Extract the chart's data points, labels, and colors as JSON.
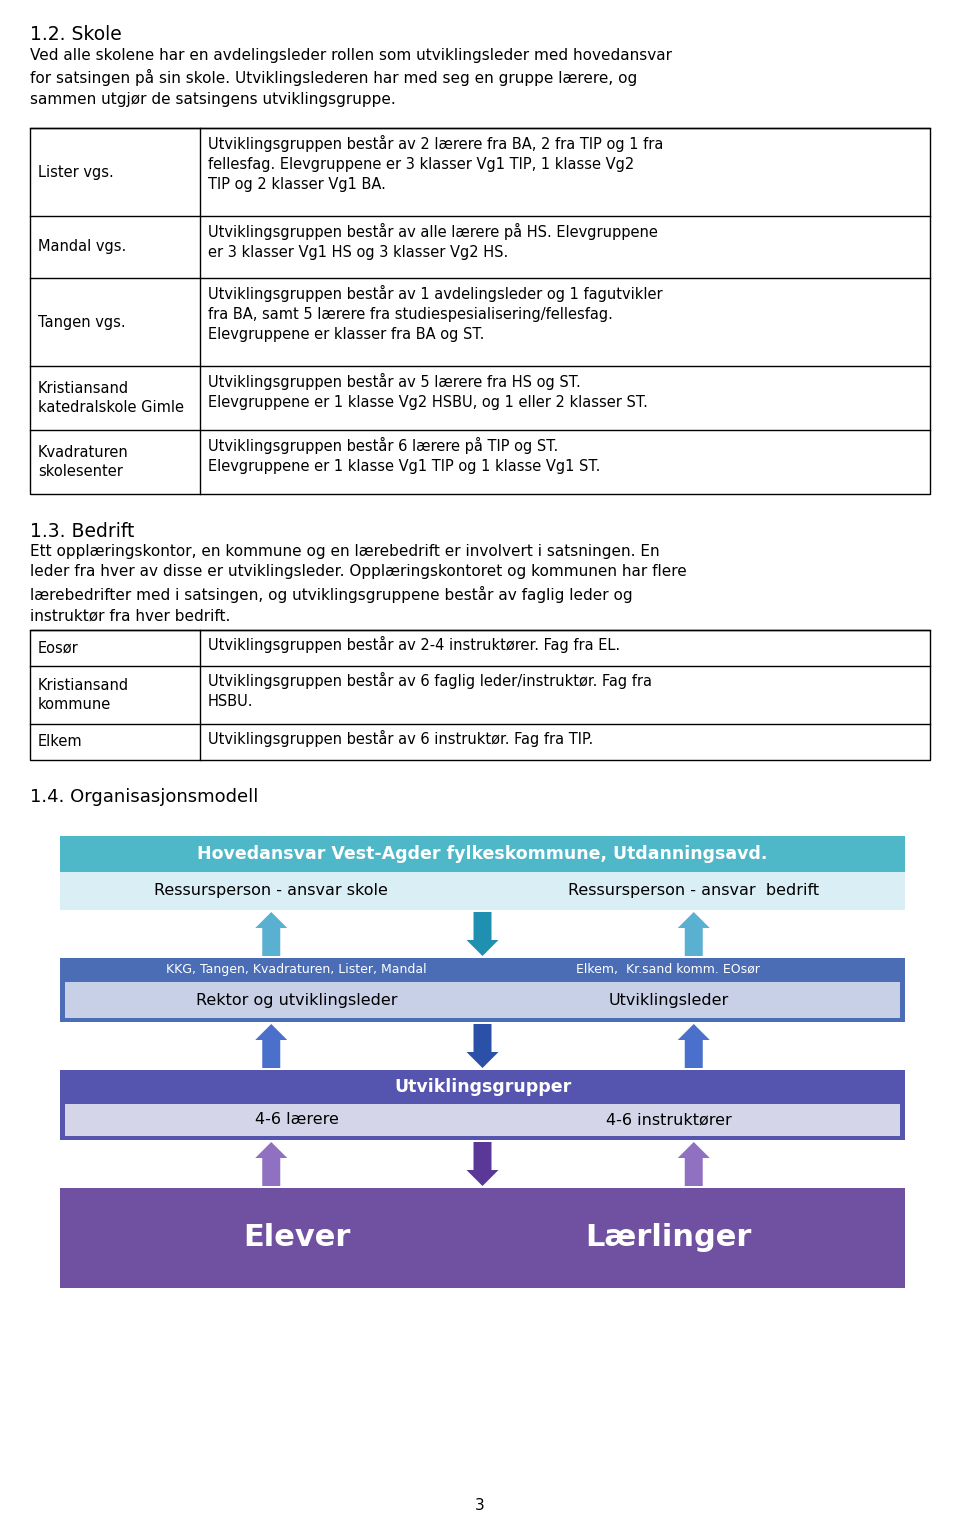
{
  "title_section": "1.2. Skole",
  "intro_text": "Ved alle skolene har en avdelingsleder rollen som utviklingsleder med hovedansvar\nfor satsingen på sin skole. Utviklingslederen har med seg en gruppe lærere, og\nsammen utgjør de satsingens utviklingsgruppe.",
  "table1": {
    "rows": [
      [
        "Lister vgs.",
        "Utviklingsgruppen består av 2 lærere fra BA, 2 fra TIP og 1 fra\nfellesfag. Elevgruppene er 3 klasser Vg1 TIP, 1 klasse Vg2\nTIP og 2 klasser Vg1 BA."
      ],
      [
        "Mandal vgs.",
        "Utviklingsgruppen består av alle lærere på HS. Elevgruppene\ner 3 klasser Vg1 HS og 3 klasser Vg2 HS."
      ],
      [
        "Tangen vgs.",
        "Utviklingsgruppen består av 1 avdelingsleder og 1 fagutvikler\nfra BA, samt 5 lærere fra studiespesialisering/fellesfag.\nElevgruppene er klasser fra BA og ST."
      ],
      [
        "Kristiansand\nkatedralskole Gimle",
        "Utviklingsgruppen består av 5 lærere fra HS og ST.\nElevgruppene er 1 klasse Vg2 HSBU, og 1 eller 2 klasser ST."
      ],
      [
        "Kvadraturen\nskolesenter",
        "Utviklingsgruppen består 6 lærere på TIP og ST.\nElevgruppene er 1 klasse Vg1 TIP og 1 klasse Vg1 ST."
      ]
    ]
  },
  "section2_title": "1.3. Bedrift",
  "section2_text": "Ett opplæringskontor, en kommune og en lærebedrift er involvert i satsningen. En\nleder fra hver av disse er utviklingsleder. Opplæringskontoret og kommunen har flere\nlærebedrifter med i satsingen, og utviklingsgruppene består av faglig leder og\ninstruktør fra hver bedrift.",
  "table2": {
    "rows": [
      [
        "Eosør",
        "Utviklingsgruppen består av 2-4 instruktører. Fag fra EL."
      ],
      [
        "Kristiansand\nkommune",
        "Utviklingsgruppen består av 6 faglig leder/instruktør. Fag fra\nHSBU."
      ],
      [
        "Elkem",
        "Utviklingsgruppen består av 6 instruktør. Fag fra TIP."
      ]
    ]
  },
  "section3_title": "1.4. Organisasjonsmodell",
  "diagram": {
    "box1_text": "Hovedansvar Vest-Agder fylkeskommune, Utdanningsavd.",
    "box1_color": "#4eb8c8",
    "box2_left": "Ressursperson - ansvar skole",
    "box2_right": "Ressursperson - ansvar  bedrift",
    "box2_color": "#daeef6",
    "box3_color": "#4a6db5",
    "box3_left_small": "KKG, Tangen, Kvadraturen, Lister, Mandal",
    "box3_right_small": "Elkem,  Kr.sand komm. EOsør",
    "box3_left": "Rektor og utviklingsleder",
    "box3_right": "Utviklingsleder",
    "box3_inner_color": "#c8d0e8",
    "box4_text": "Utviklingsgrupper",
    "box4_color": "#5555b0",
    "box4_inner_color": "#d5d5ea",
    "box4_left": "4-6 lærere",
    "box4_right": "4-6 instruktører",
    "box5_text_left": "Elever",
    "box5_text_right": "Lærlinger",
    "box5_color": "#7050a0",
    "page_number": "3",
    "arrow_up_color_light": "#5ab0d0",
    "arrow_up_color_blue": "#4a70cc",
    "arrow_up_color_purple": "#9070c0",
    "arrow_down_color_teal": "#2090b0",
    "arrow_down_color_blue": "#2a50a8",
    "arrow_down_color_purple": "#5a3898"
  }
}
